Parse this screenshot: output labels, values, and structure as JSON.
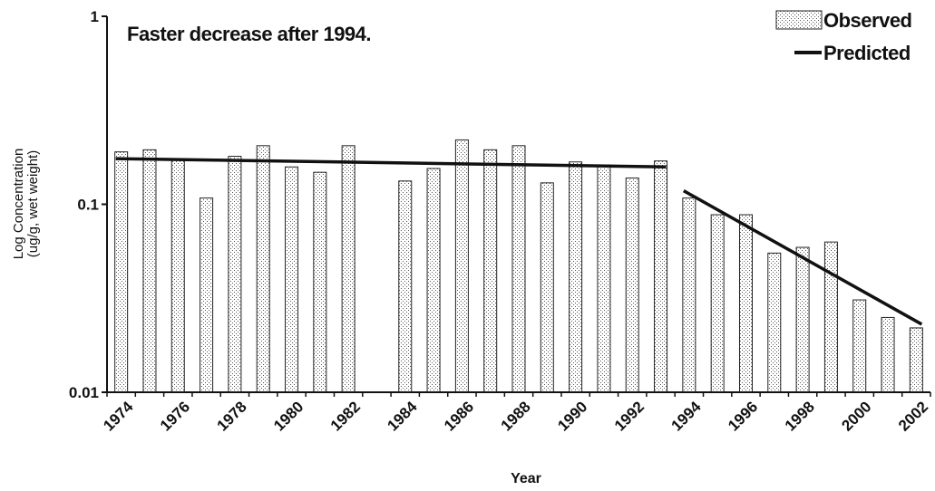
{
  "chart_data": {
    "type": "bar",
    "annotation": "Faster decrease after 1994.",
    "xlabel": "Year",
    "ylabel_line1": "Log Concentration",
    "ylabel_line2": "(ug/g, wet weight)",
    "yscale": "log",
    "ylim": [
      0.01,
      1
    ],
    "yticks": [
      "0.01",
      "0.1",
      "1"
    ],
    "xtick_labels": [
      "1974",
      "1976",
      "1978",
      "1980",
      "1982",
      "1984",
      "1986",
      "1988",
      "1990",
      "1992",
      "1994",
      "1996",
      "1998",
      "2000",
      "2002"
    ],
    "legend_position": "top-right",
    "grid": false,
    "categories": [
      1974,
      1975,
      1976,
      1977,
      1978,
      1979,
      1980,
      1981,
      1982,
      1983,
      1984,
      1985,
      1986,
      1987,
      1988,
      1989,
      1990,
      1991,
      1992,
      1993,
      1994,
      1995,
      1996,
      1997,
      1998,
      1999,
      2000,
      2001,
      2002
    ],
    "series": [
      {
        "name": "Observed",
        "style": "dotted-bar",
        "values": [
          0.19,
          0.195,
          0.175,
          0.108,
          0.18,
          0.205,
          0.158,
          0.148,
          0.205,
          null,
          0.133,
          0.155,
          0.22,
          0.195,
          0.205,
          0.13,
          0.168,
          0.162,
          0.138,
          0.17,
          0.108,
          0.088,
          0.088,
          0.055,
          0.059,
          0.063,
          0.031,
          0.025,
          0.022
        ]
      },
      {
        "name": "Predicted",
        "style": "line",
        "segments": [
          {
            "x": [
              1974,
              1993
            ],
            "y": [
              0.175,
              0.158
            ]
          },
          {
            "x": [
              1994,
              2002
            ],
            "y": [
              0.118,
              0.023
            ]
          }
        ]
      }
    ]
  }
}
